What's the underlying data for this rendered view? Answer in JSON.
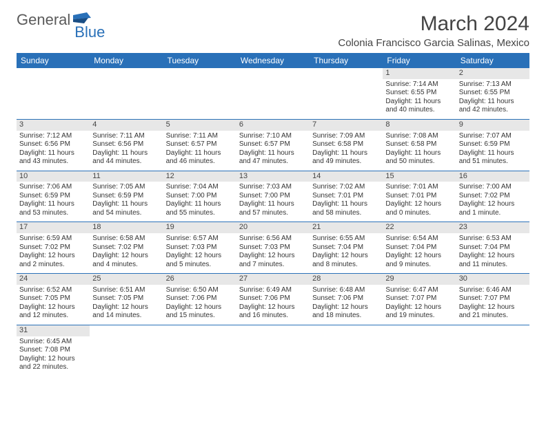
{
  "logo": {
    "text1": "General",
    "text2": "Blue"
  },
  "title": "March 2024",
  "location": "Colonia Francisco Garcia Salinas, Mexico",
  "colors": {
    "header_bg": "#2970b8",
    "header_text": "#ffffff",
    "daynum_bg": "#e7e7e7",
    "border": "#2970b8",
    "text": "#333333",
    "logo_gray": "#5a5a5a",
    "logo_blue": "#2970b8",
    "background": "#ffffff"
  },
  "typography": {
    "title_fontsize": 30,
    "location_fontsize": 15,
    "header_fontsize": 12,
    "daynum_fontsize": 11,
    "cell_fontsize": 10,
    "font_family": "Arial"
  },
  "headers": [
    "Sunday",
    "Monday",
    "Tuesday",
    "Wednesday",
    "Thursday",
    "Friday",
    "Saturday"
  ],
  "weeks": [
    [
      null,
      null,
      null,
      null,
      null,
      {
        "n": "1",
        "sr": "Sunrise: 7:14 AM",
        "ss": "Sunset: 6:55 PM",
        "dl1": "Daylight: 11 hours",
        "dl2": "and 40 minutes."
      },
      {
        "n": "2",
        "sr": "Sunrise: 7:13 AM",
        "ss": "Sunset: 6:55 PM",
        "dl1": "Daylight: 11 hours",
        "dl2": "and 42 minutes."
      }
    ],
    [
      {
        "n": "3",
        "sr": "Sunrise: 7:12 AM",
        "ss": "Sunset: 6:56 PM",
        "dl1": "Daylight: 11 hours",
        "dl2": "and 43 minutes."
      },
      {
        "n": "4",
        "sr": "Sunrise: 7:11 AM",
        "ss": "Sunset: 6:56 PM",
        "dl1": "Daylight: 11 hours",
        "dl2": "and 44 minutes."
      },
      {
        "n": "5",
        "sr": "Sunrise: 7:11 AM",
        "ss": "Sunset: 6:57 PM",
        "dl1": "Daylight: 11 hours",
        "dl2": "and 46 minutes."
      },
      {
        "n": "6",
        "sr": "Sunrise: 7:10 AM",
        "ss": "Sunset: 6:57 PM",
        "dl1": "Daylight: 11 hours",
        "dl2": "and 47 minutes."
      },
      {
        "n": "7",
        "sr": "Sunrise: 7:09 AM",
        "ss": "Sunset: 6:58 PM",
        "dl1": "Daylight: 11 hours",
        "dl2": "and 49 minutes."
      },
      {
        "n": "8",
        "sr": "Sunrise: 7:08 AM",
        "ss": "Sunset: 6:58 PM",
        "dl1": "Daylight: 11 hours",
        "dl2": "and 50 minutes."
      },
      {
        "n": "9",
        "sr": "Sunrise: 7:07 AM",
        "ss": "Sunset: 6:59 PM",
        "dl1": "Daylight: 11 hours",
        "dl2": "and 51 minutes."
      }
    ],
    [
      {
        "n": "10",
        "sr": "Sunrise: 7:06 AM",
        "ss": "Sunset: 6:59 PM",
        "dl1": "Daylight: 11 hours",
        "dl2": "and 53 minutes."
      },
      {
        "n": "11",
        "sr": "Sunrise: 7:05 AM",
        "ss": "Sunset: 6:59 PM",
        "dl1": "Daylight: 11 hours",
        "dl2": "and 54 minutes."
      },
      {
        "n": "12",
        "sr": "Sunrise: 7:04 AM",
        "ss": "Sunset: 7:00 PM",
        "dl1": "Daylight: 11 hours",
        "dl2": "and 55 minutes."
      },
      {
        "n": "13",
        "sr": "Sunrise: 7:03 AM",
        "ss": "Sunset: 7:00 PM",
        "dl1": "Daylight: 11 hours",
        "dl2": "and 57 minutes."
      },
      {
        "n": "14",
        "sr": "Sunrise: 7:02 AM",
        "ss": "Sunset: 7:01 PM",
        "dl1": "Daylight: 11 hours",
        "dl2": "and 58 minutes."
      },
      {
        "n": "15",
        "sr": "Sunrise: 7:01 AM",
        "ss": "Sunset: 7:01 PM",
        "dl1": "Daylight: 12 hours",
        "dl2": "and 0 minutes."
      },
      {
        "n": "16",
        "sr": "Sunrise: 7:00 AM",
        "ss": "Sunset: 7:02 PM",
        "dl1": "Daylight: 12 hours",
        "dl2": "and 1 minute."
      }
    ],
    [
      {
        "n": "17",
        "sr": "Sunrise: 6:59 AM",
        "ss": "Sunset: 7:02 PM",
        "dl1": "Daylight: 12 hours",
        "dl2": "and 2 minutes."
      },
      {
        "n": "18",
        "sr": "Sunrise: 6:58 AM",
        "ss": "Sunset: 7:02 PM",
        "dl1": "Daylight: 12 hours",
        "dl2": "and 4 minutes."
      },
      {
        "n": "19",
        "sr": "Sunrise: 6:57 AM",
        "ss": "Sunset: 7:03 PM",
        "dl1": "Daylight: 12 hours",
        "dl2": "and 5 minutes."
      },
      {
        "n": "20",
        "sr": "Sunrise: 6:56 AM",
        "ss": "Sunset: 7:03 PM",
        "dl1": "Daylight: 12 hours",
        "dl2": "and 7 minutes."
      },
      {
        "n": "21",
        "sr": "Sunrise: 6:55 AM",
        "ss": "Sunset: 7:04 PM",
        "dl1": "Daylight: 12 hours",
        "dl2": "and 8 minutes."
      },
      {
        "n": "22",
        "sr": "Sunrise: 6:54 AM",
        "ss": "Sunset: 7:04 PM",
        "dl1": "Daylight: 12 hours",
        "dl2": "and 9 minutes."
      },
      {
        "n": "23",
        "sr": "Sunrise: 6:53 AM",
        "ss": "Sunset: 7:04 PM",
        "dl1": "Daylight: 12 hours",
        "dl2": "and 11 minutes."
      }
    ],
    [
      {
        "n": "24",
        "sr": "Sunrise: 6:52 AM",
        "ss": "Sunset: 7:05 PM",
        "dl1": "Daylight: 12 hours",
        "dl2": "and 12 minutes."
      },
      {
        "n": "25",
        "sr": "Sunrise: 6:51 AM",
        "ss": "Sunset: 7:05 PM",
        "dl1": "Daylight: 12 hours",
        "dl2": "and 14 minutes."
      },
      {
        "n": "26",
        "sr": "Sunrise: 6:50 AM",
        "ss": "Sunset: 7:06 PM",
        "dl1": "Daylight: 12 hours",
        "dl2": "and 15 minutes."
      },
      {
        "n": "27",
        "sr": "Sunrise: 6:49 AM",
        "ss": "Sunset: 7:06 PM",
        "dl1": "Daylight: 12 hours",
        "dl2": "and 16 minutes."
      },
      {
        "n": "28",
        "sr": "Sunrise: 6:48 AM",
        "ss": "Sunset: 7:06 PM",
        "dl1": "Daylight: 12 hours",
        "dl2": "and 18 minutes."
      },
      {
        "n": "29",
        "sr": "Sunrise: 6:47 AM",
        "ss": "Sunset: 7:07 PM",
        "dl1": "Daylight: 12 hours",
        "dl2": "and 19 minutes."
      },
      {
        "n": "30",
        "sr": "Sunrise: 6:46 AM",
        "ss": "Sunset: 7:07 PM",
        "dl1": "Daylight: 12 hours",
        "dl2": "and 21 minutes."
      }
    ],
    [
      {
        "n": "31",
        "sr": "Sunrise: 6:45 AM",
        "ss": "Sunset: 7:08 PM",
        "dl1": "Daylight: 12 hours",
        "dl2": "and 22 minutes."
      },
      null,
      null,
      null,
      null,
      null,
      null
    ]
  ]
}
